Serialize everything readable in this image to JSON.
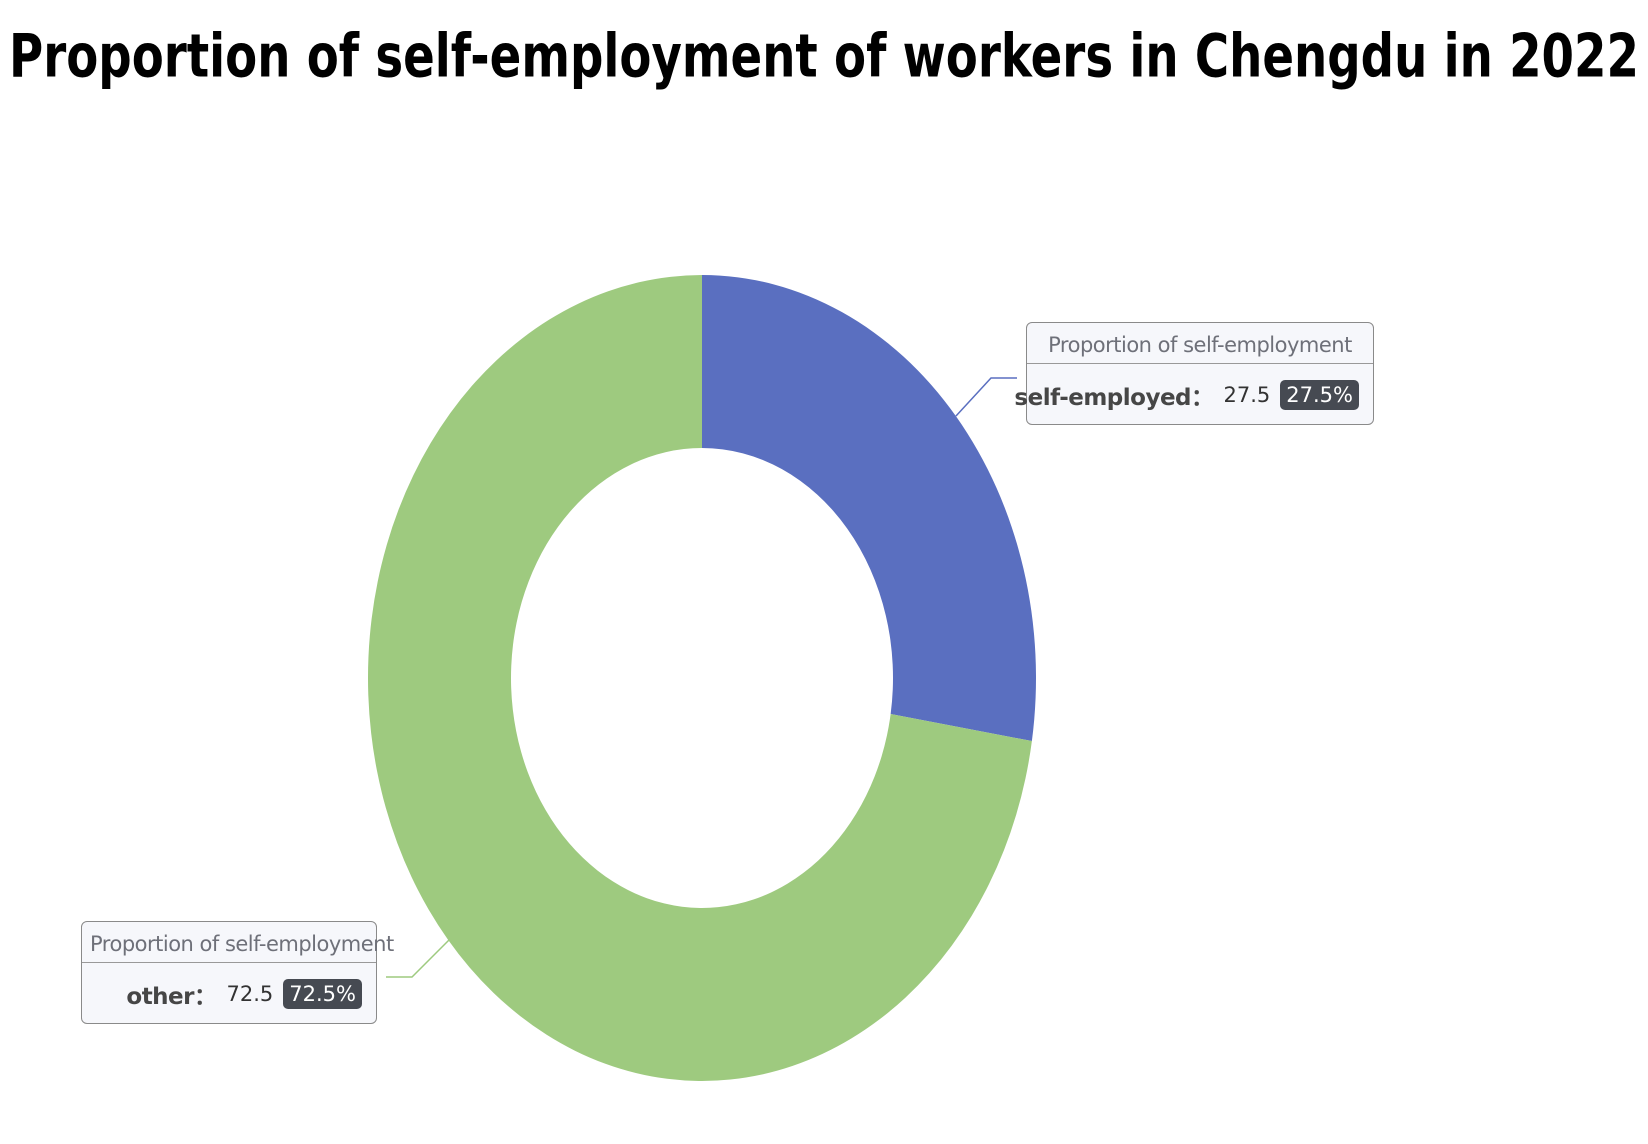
{
  "chart_data": {
    "type": "pie",
    "title": "Proportion of self-employment of workers in Chengdu in 2022",
    "series_name": "Proportion of self-employment",
    "categories": [
      "self-employed",
      "other"
    ],
    "values": [
      27.5,
      72.5
    ],
    "value_labels": [
      "27.5%",
      "72.5%"
    ],
    "colors": [
      "#5a6fc0",
      "#9eca7f"
    ]
  }
}
